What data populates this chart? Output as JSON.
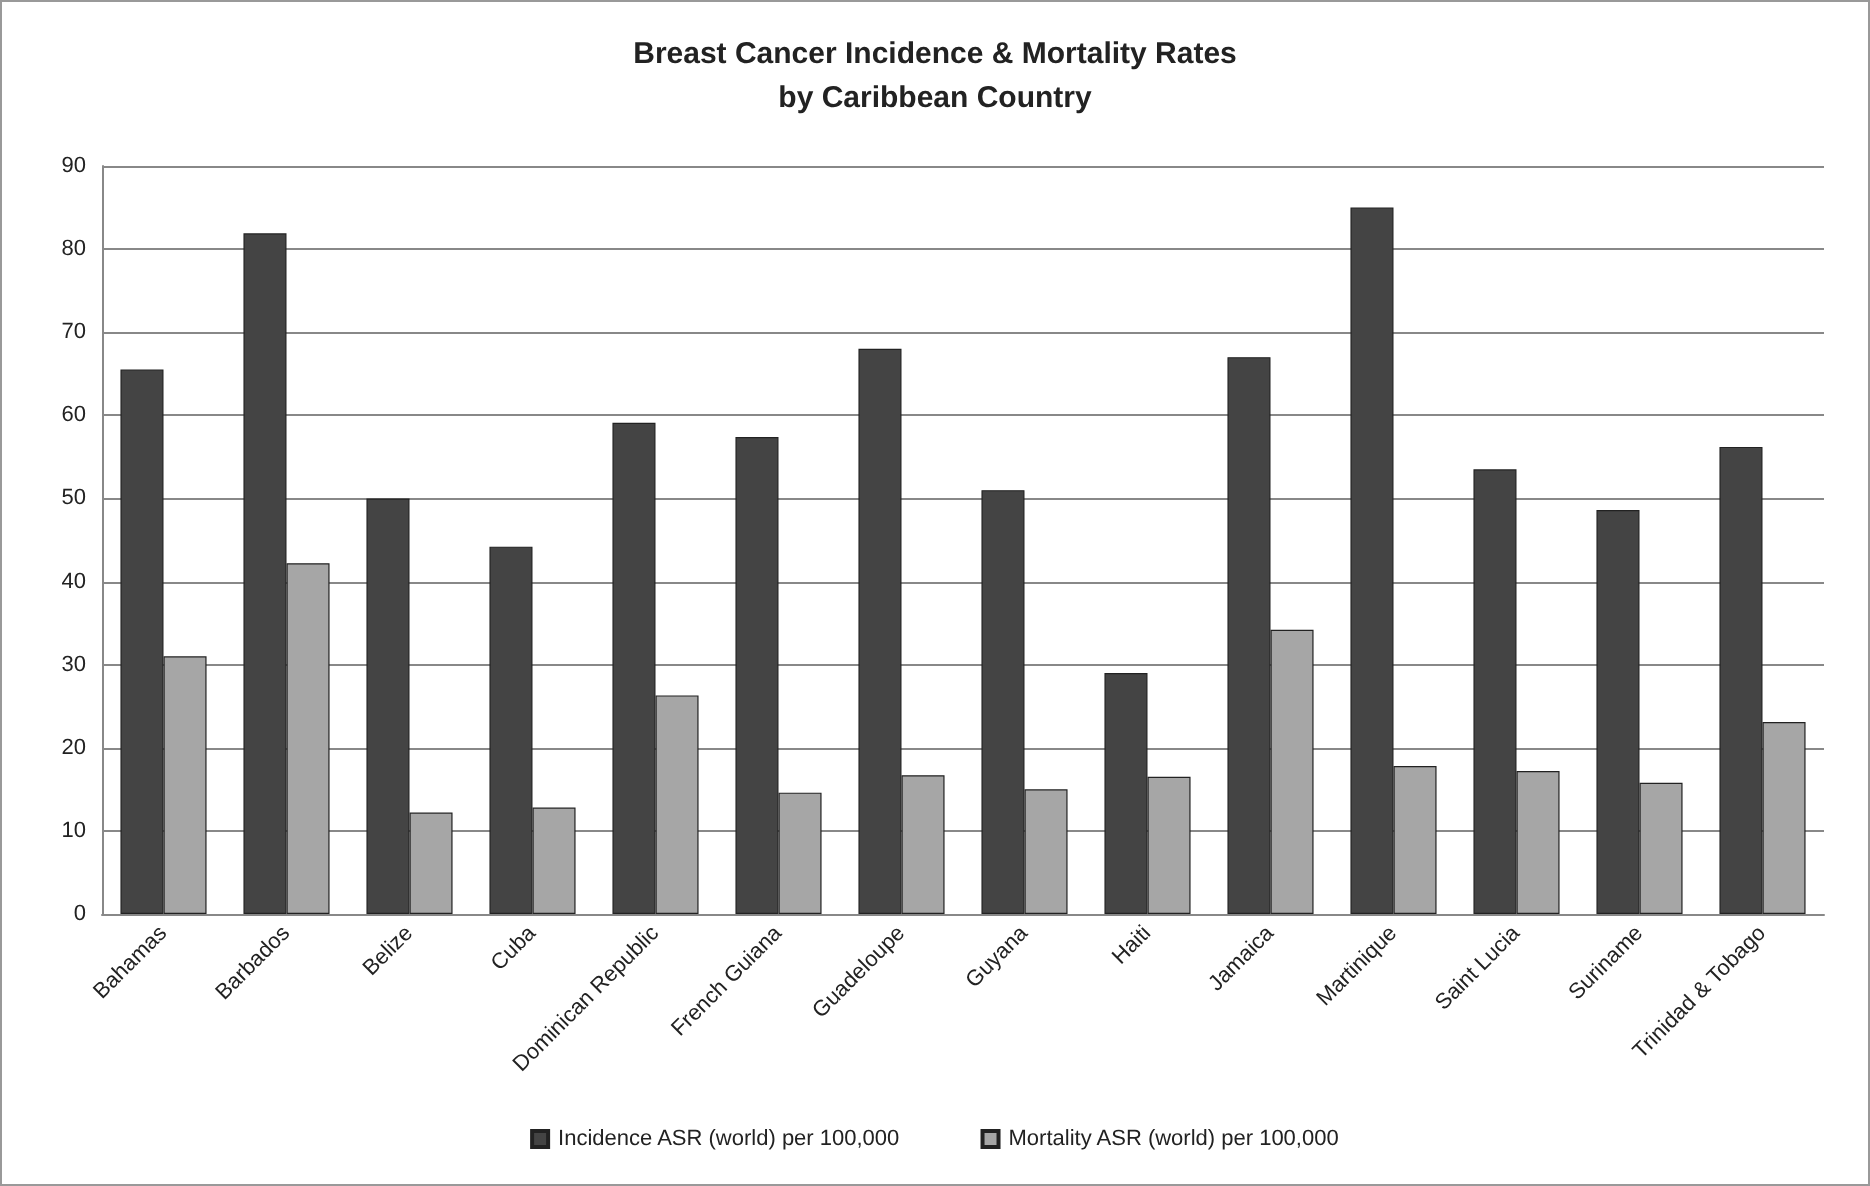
{
  "chart_data": {
    "type": "bar",
    "title": "Breast Cancer Incidence & Mortality Rates\nby Caribbean Country",
    "categories": [
      "Bahamas",
      "Barbados",
      "Belize",
      "Cuba",
      "Dominican Republic",
      "French Guiana",
      "Guadeloupe",
      "Guyana",
      "Haiti",
      "Jamaica",
      "Martinique",
      "Saint Lucia",
      "Suriname",
      "Trinidad & Tobago"
    ],
    "series": [
      {
        "name": "Incidence ASR (world) per 100,000",
        "color": "#444444",
        "values": [
          65.5,
          81.9,
          50.0,
          44.2,
          59.1,
          57.4,
          68.0,
          51.0,
          29.0,
          67.0,
          85.0,
          53.5,
          48.6,
          56.2
        ]
      },
      {
        "name": "Mortality ASR (world) per 100,000",
        "color": "#a6a6a6",
        "values": [
          31.0,
          42.2,
          12.2,
          12.8,
          26.3,
          14.6,
          16.7,
          15.0,
          16.5,
          34.2,
          17.8,
          17.2,
          15.8,
          23.1
        ]
      }
    ],
    "ylim": [
      0,
      90
    ],
    "yticks": [
      0,
      10,
      20,
      30,
      40,
      50,
      60,
      70,
      80,
      90
    ],
    "grid": "y",
    "legend": "bottom"
  }
}
